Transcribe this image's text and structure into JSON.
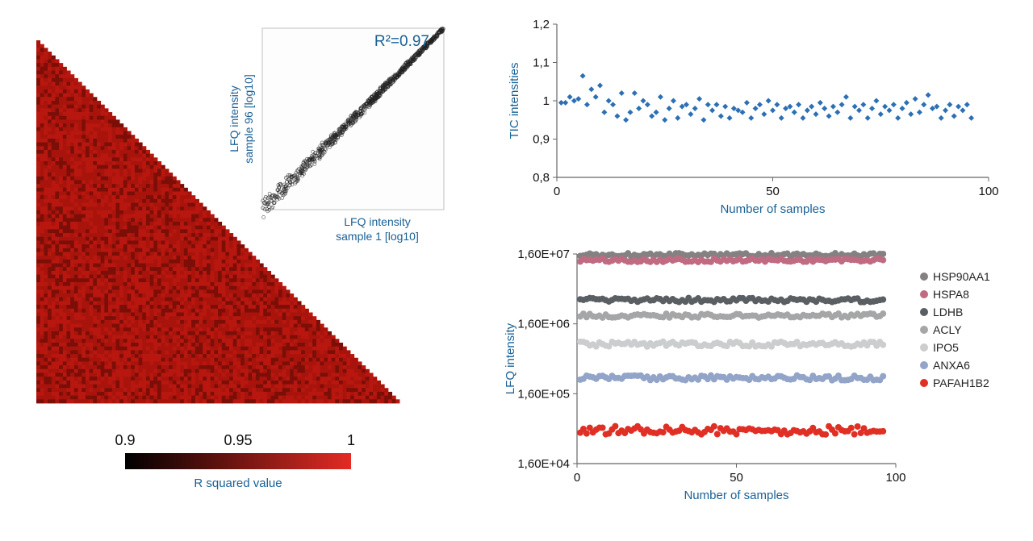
{
  "background_color": "#ffffff",
  "left": {
    "heatmap": {
      "type": "heatmap-triangular",
      "n": 96,
      "colormap": {
        "min_color": "#000000",
        "max_color": "#e22b23",
        "min_value": 0.9,
        "max_value": 1.0
      },
      "fill_color": "#b8170f",
      "colorbar_ticks": [
        "0.9",
        "0.95",
        "1"
      ],
      "colorbar_label": "R squared value",
      "colorbar_label_color": "#1a6196",
      "colorbar_label_fontsize": 15,
      "tick_fontsize": 18
    },
    "scatter_inset": {
      "type": "scatter",
      "r2_label": "R²=0.97",
      "r2_fontsize": 19,
      "r2_color": "#1a6196",
      "xlabel_line1": "LFQ intensity",
      "xlabel_line2": "sample 1 [log10]",
      "ylabel_line1": "LFQ intensity",
      "ylabel_line2": "sample 96 [log10]",
      "label_fontsize": 14,
      "label_color": "#1a6196",
      "marker_color": "#222222",
      "marker_fill": "none",
      "marker_size": 2.0,
      "xlim": [
        4.5,
        9.5
      ],
      "ylim": [
        4.5,
        9.5
      ],
      "n_points": 900,
      "noise_sigma": 0.14
    }
  },
  "top_right": {
    "type": "scatter",
    "title": "",
    "xlabel": "Number of samples",
    "ylabel": "TIC intensities",
    "label_color": "#1a6196",
    "label_fontsize": 15,
    "tick_fontsize": 15,
    "xlim": [
      0,
      100
    ],
    "ylim": [
      0.8,
      1.2
    ],
    "ytick_vals": [
      0.8,
      0.9,
      1.0,
      1.1,
      1.2
    ],
    "ytick_labels": [
      "0,8",
      "0,9",
      "1",
      "1,1",
      "1,2"
    ],
    "xtick_vals": [
      0,
      50,
      100
    ],
    "xtick_labels": [
      "0",
      "50",
      "100"
    ],
    "marker_color": "#2c6fb5",
    "marker_shape": "diamond",
    "marker_size": 7,
    "values": [
      0.995,
      0.995,
      1.01,
      1.0,
      1.005,
      1.065,
      0.99,
      1.03,
      1.01,
      1.04,
      0.97,
      1.0,
      0.99,
      0.96,
      1.02,
      0.95,
      0.97,
      1.02,
      0.98,
      1.0,
      0.99,
      0.96,
      0.97,
      1.01,
      0.95,
      0.98,
      1.0,
      0.955,
      0.985,
      0.99,
      0.965,
      0.98,
      1.005,
      0.95,
      0.99,
      0.975,
      0.99,
      0.96,
      0.985,
      0.955,
      0.98,
      0.975,
      0.97,
      0.995,
      0.955,
      0.98,
      0.99,
      0.965,
      1.0,
      0.975,
      0.99,
      0.955,
      0.98,
      0.985,
      0.97,
      0.99,
      0.955,
      0.975,
      0.985,
      0.965,
      0.995,
      0.98,
      0.96,
      0.985,
      0.97,
      0.99,
      1.01,
      0.955,
      0.985,
      0.975,
      0.99,
      0.955,
      0.98,
      1.0,
      0.965,
      0.985,
      0.975,
      0.99,
      0.955,
      0.98,
      0.995,
      0.965,
      1.005,
      0.97,
      0.99,
      1.015,
      0.98,
      0.985,
      0.955,
      0.975,
      0.99,
      0.96,
      0.985,
      0.975,
      0.99,
      0.955
    ]
  },
  "bottom_right": {
    "type": "scatter-multi",
    "xlabel": "Number of samples",
    "ylabel": "LFQ intensity",
    "label_color": "#1a6196",
    "label_fontsize": 15,
    "tick_fontsize": 15,
    "xlim": [
      0,
      100
    ],
    "xtick_vals": [
      0,
      50,
      100
    ],
    "xtick_labels": [
      "0",
      "50",
      "100"
    ],
    "yscale": "log",
    "ylim": [
      16000.0,
      16000000.0
    ],
    "ytick_vals": [
      16000.0,
      160000.0,
      1600000.0,
      16000000.0
    ],
    "ytick_labels": [
      "1,60E+04",
      "1,60E+05",
      "1,60E+06",
      "1,60E+07"
    ],
    "n_points": 96,
    "series": [
      {
        "name": "HSP90AA1",
        "color": "#858183",
        "level": 15500000.0,
        "jitter": 0.025
      },
      {
        "name": "HSPA8",
        "color": "#c06b82",
        "level": 13000000.0,
        "jitter": 0.025
      },
      {
        "name": "LDHB",
        "color": "#5a5f63",
        "level": 3500000.0,
        "jitter": 0.03
      },
      {
        "name": "ACLY",
        "color": "#a4a6a7",
        "level": 2100000.0,
        "jitter": 0.03
      },
      {
        "name": "IPO5",
        "color": "#cbcdce",
        "level": 820000.0,
        "jitter": 0.035
      },
      {
        "name": "ANXA6",
        "color": "#93a4c9",
        "level": 270000.0,
        "jitter": 0.035
      },
      {
        "name": "PAFAH1B2",
        "color": "#e02f25",
        "level": 48000.0,
        "jitter": 0.06
      }
    ],
    "marker_size": 4
  }
}
